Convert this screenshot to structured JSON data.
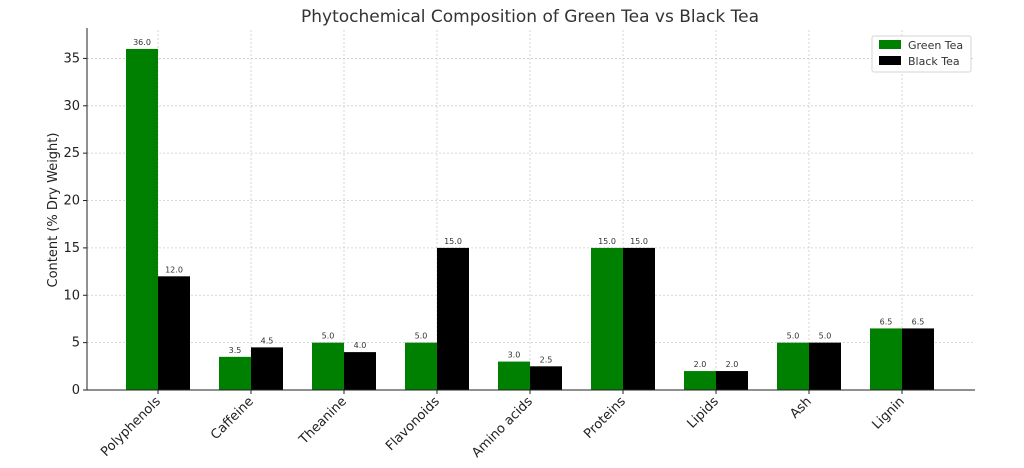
{
  "chart_data": {
    "type": "bar",
    "title": "Phytochemical Composition of Green Tea vs Black Tea",
    "xlabel": "",
    "ylabel": "Content (% Dry Weight)",
    "ylim": [
      0,
      38
    ],
    "yticks": [
      0,
      5,
      10,
      15,
      20,
      25,
      30,
      35
    ],
    "grid": true,
    "legend_position": "top-right",
    "categories": [
      "Polyphenols",
      "Caffeine",
      "Theanine",
      "Flavonoids",
      "Amino acids",
      "Proteins",
      "Lipids",
      "Ash",
      "Lignin"
    ],
    "series": [
      {
        "name": "Green Tea",
        "color": "#008000",
        "values": [
          36.0,
          3.5,
          5.0,
          5.0,
          3.0,
          15.0,
          2.0,
          5.0,
          6.5
        ]
      },
      {
        "name": "Black Tea",
        "color": "#000000",
        "values": [
          12.0,
          4.5,
          4.0,
          15.0,
          2.5,
          15.0,
          2.0,
          5.0,
          6.5
        ]
      }
    ]
  }
}
